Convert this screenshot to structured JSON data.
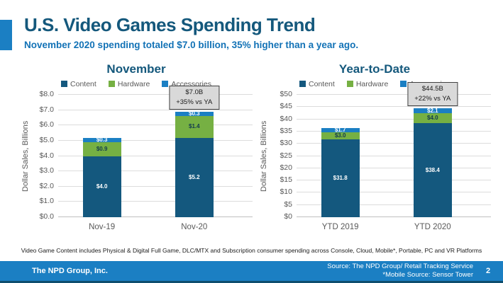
{
  "header": {
    "title": "U.S. Video Games Spending Trend",
    "subtitle": "November 2020 spending totaled $7.0 billion, 35% higher than a year ago."
  },
  "colors": {
    "content_navy": "#14587e",
    "hardware_green": "#76b043",
    "accessories_blue": "#1b7fc3",
    "title_blue": "#14587c",
    "subtitle_blue": "#1272b6",
    "footer_blue": "#1b7fc3",
    "annotation_bg": "#d9d9d9"
  },
  "chart_data": [
    {
      "type": "bar",
      "stacked": true,
      "title": "November",
      "ylabel": "Dollar Sales, Billions",
      "categories": [
        "Nov-19",
        "Nov-20"
      ],
      "series": [
        {
          "name": "Content",
          "color": "#14587e",
          "values": [
            4.0,
            5.2
          ],
          "data_labels": [
            "$4.0",
            "$5.2"
          ],
          "label_color": "#ffffff"
        },
        {
          "name": "Hardware",
          "color": "#76b043",
          "values": [
            0.9,
            1.4
          ],
          "data_labels": [
            "$0.9",
            "$1.4"
          ],
          "label_color": "#123a4f"
        },
        {
          "name": "Accessories",
          "color": "#1b7fc3",
          "values": [
            0.3,
            0.3
          ],
          "data_labels": [
            "$0.3",
            "$0.3"
          ],
          "label_color": "#ffffff"
        }
      ],
      "totals": [
        5.2,
        7.0
      ],
      "ylim": [
        0,
        8
      ],
      "ytick_step": 1,
      "ytick_labels": [
        "$0.0",
        "$1.0",
        "$2.0",
        "$3.0",
        "$4.0",
        "$5.0",
        "$6.0",
        "$7.0",
        "$8.0"
      ],
      "grid": true,
      "legend_position": "top",
      "annotation": {
        "category_index": 1,
        "lines": [
          "$7.0B",
          "+35% vs YA"
        ]
      }
    },
    {
      "type": "bar",
      "stacked": true,
      "title": "Year-to-Date",
      "ylabel": "Dollar Sales, Billions",
      "categories": [
        "YTD 2019",
        "YTD 2020"
      ],
      "series": [
        {
          "name": "Content",
          "color": "#14587e",
          "values": [
            31.8,
            38.4
          ],
          "data_labels": [
            "$31.8",
            "$38.4"
          ],
          "label_color": "#ffffff"
        },
        {
          "name": "Hardware",
          "color": "#76b043",
          "values": [
            3.0,
            4.0
          ],
          "data_labels": [
            "$3.0",
            "$4.0"
          ],
          "label_color": "#123a4f"
        },
        {
          "name": "Accessories",
          "color": "#1b7fc3",
          "values": [
            1.7,
            2.1
          ],
          "data_labels": [
            "$1.7",
            "$2.1"
          ],
          "label_color": "#ffffff"
        }
      ],
      "totals": [
        36.5,
        44.5
      ],
      "ylim": [
        0,
        50
      ],
      "ytick_step": 5,
      "ytick_labels": [
        "$0",
        "$5",
        "$10",
        "$15",
        "$20",
        "$25",
        "$30",
        "$35",
        "$40",
        "$45",
        "$50"
      ],
      "grid": true,
      "legend_position": "top",
      "annotation": {
        "category_index": 1,
        "lines": [
          "$44.5B",
          "+22% vs YA"
        ]
      }
    }
  ],
  "footnote": "Video Game Content includes Physical & Digital Full Game, DLC/MTX and Subscription consumer spending across Console, Cloud, Mobile*, Portable, PC and VR Platforms",
  "footer": {
    "company": "The NPD Group, Inc.",
    "source_line1": "Source: The NPD Group/ Retail Tracking Service",
    "source_line2": "*Mobile Source: Sensor Tower",
    "page_number": "2"
  }
}
